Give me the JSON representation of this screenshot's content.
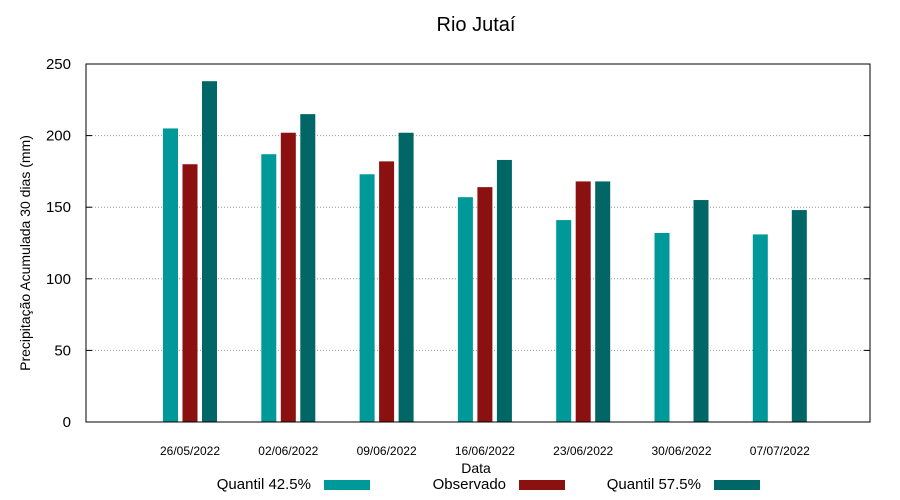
{
  "chart_data": {
    "type": "bar",
    "title": "Rio Jutaí",
    "xlabel": "Data",
    "ylabel": "Precipitação Acumulada 30 dias (mm)",
    "ylim": [
      0,
      250
    ],
    "yticks": [
      0,
      50,
      100,
      150,
      200,
      250
    ],
    "grid": true,
    "legend_position": "bottom",
    "categories": [
      "26/05/2022",
      "02/06/2022",
      "09/06/2022",
      "16/06/2022",
      "23/06/2022",
      "30/06/2022",
      "07/07/2022"
    ],
    "series": [
      {
        "name": "Quantil 42.5%",
        "color": "#009999",
        "values": [
          205,
          187,
          173,
          157,
          141,
          132,
          131
        ]
      },
      {
        "name": "Observado",
        "color": "#8b1010",
        "values": [
          180,
          202,
          182,
          164,
          168,
          null,
          null
        ]
      },
      {
        "name": "Quantil 57.5%",
        "color": "#006666",
        "values": [
          238,
          215,
          202,
          183,
          168,
          155,
          148
        ]
      }
    ]
  }
}
